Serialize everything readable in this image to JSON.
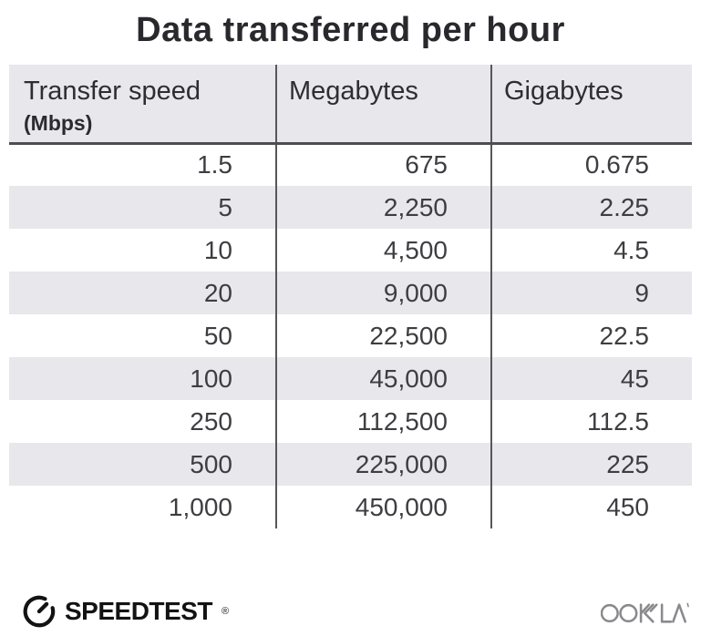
{
  "title": "Data transferred per hour",
  "chart_data": {
    "type": "table",
    "title": "Data transferred per hour",
    "columns": [
      "Transfer speed (Mbps)",
      "Megabytes",
      "Gigabytes"
    ],
    "rows": [
      [
        1.5,
        675,
        0.675
      ],
      [
        5,
        2250,
        2.25
      ],
      [
        10,
        4500,
        4.5
      ],
      [
        20,
        9000,
        9
      ],
      [
        50,
        22500,
        22.5
      ],
      [
        100,
        45000,
        45
      ],
      [
        250,
        112500,
        112.5
      ],
      [
        500,
        225000,
        225
      ],
      [
        1000,
        450000,
        450
      ]
    ]
  },
  "table": {
    "columns": [
      {
        "label": "Transfer speed",
        "sublabel": "(Mbps)"
      },
      {
        "label": "Megabytes"
      },
      {
        "label": "Gigabytes"
      }
    ],
    "rows": [
      [
        "1.5",
        "675",
        "0.675"
      ],
      [
        "5",
        "2,250",
        "2.25"
      ],
      [
        "10",
        "4,500",
        "4.5"
      ],
      [
        "20",
        "9,000",
        "9"
      ],
      [
        "50",
        "22,500",
        "22.5"
      ],
      [
        "100",
        "45,000",
        "45"
      ],
      [
        "250",
        "112,500",
        "112.5"
      ],
      [
        "500",
        "225,000",
        "225"
      ],
      [
        "1,000",
        "450,000",
        "450"
      ]
    ]
  },
  "footer": {
    "speedtest_label": "SPEEDTEST",
    "speedtest_trademark": "®",
    "ookla_label": "OOKLA"
  },
  "colors": {
    "header_bg": "#e8e7eb",
    "alt_row_bg": "#e8e7eb",
    "grid_line": "#57565a",
    "header_underline": "#4e4e50",
    "title_text": "#29282c",
    "cell_text": "#3e3d41",
    "logo_black": "#131313",
    "ookla_gray": "#8a898d"
  }
}
